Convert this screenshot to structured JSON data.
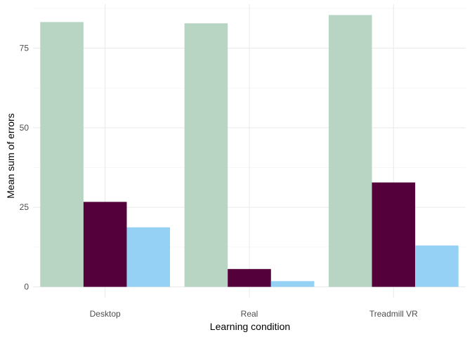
{
  "chart_data": {
    "type": "bar",
    "title": "",
    "xlabel": "Learning condition",
    "ylabel": "Mean sum of errors",
    "categories": [
      "Desktop",
      "Real",
      "Treadmill VR"
    ],
    "series": [
      {
        "values": [
          83.2,
          82.8,
          85.4
        ],
        "color": "#b7d5c2"
      },
      {
        "values": [
          26.7,
          5.6,
          32.8
        ],
        "color": "#54003a"
      },
      {
        "values": [
          18.7,
          1.8,
          13.0
        ],
        "color": "#94d1f5"
      }
    ],
    "yticks": [
      0,
      25,
      50,
      75
    ],
    "ylim": [
      -3.4,
      88.8
    ],
    "grid": true,
    "legend": "none"
  }
}
